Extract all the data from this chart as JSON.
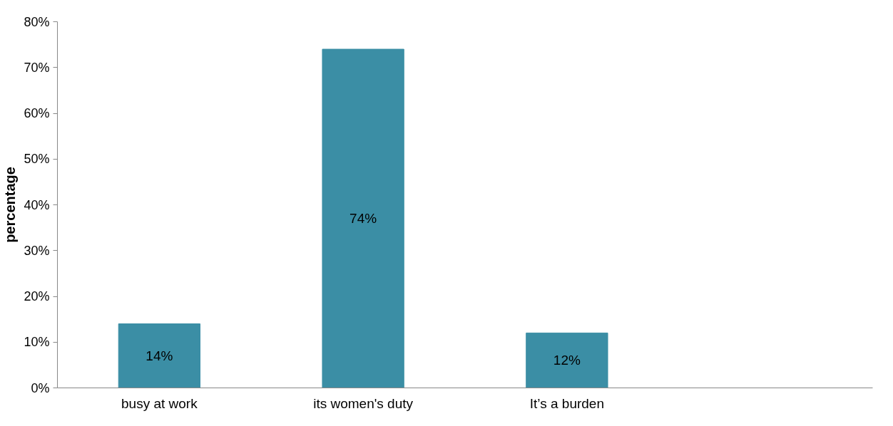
{
  "chart_data": {
    "type": "bar",
    "ylabel": "percentage",
    "categories": [
      "busy at work",
      "its women's duty",
      "It’s a burden",
      null
    ],
    "values": [
      14,
      74,
      12,
      null
    ],
    "color": "#3b8ea5",
    "ylim": [
      0,
      80
    ],
    "yticks": [
      {
        "value": 0,
        "label": "0%"
      },
      {
        "value": 10,
        "label": "10%"
      },
      {
        "value": 20,
        "label": "20%"
      },
      {
        "value": 30,
        "label": "30%"
      },
      {
        "value": 40,
        "label": "40%"
      },
      {
        "value": 50,
        "label": "50%"
      },
      {
        "value": 60,
        "label": "60%"
      },
      {
        "value": 70,
        "label": "70%"
      },
      {
        "value": 80,
        "label": "80%"
      }
    ],
    "value_labels": [
      "14%",
      "74%",
      "12%",
      null
    ],
    "grid": false
  }
}
